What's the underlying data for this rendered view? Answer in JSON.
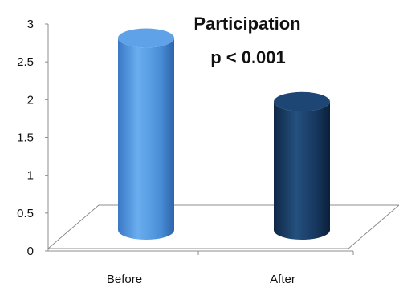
{
  "chart_data": {
    "type": "bar",
    "categories": [
      "Before",
      "After"
    ],
    "values": [
      2.92,
      2.08
    ],
    "ylim": [
      0,
      3
    ],
    "yticks": [
      "0",
      "0.5",
      "1",
      "1.5",
      "2",
      "2.5",
      "3"
    ],
    "grid": false,
    "annotations": [
      "Participation",
      "p < 0.001"
    ],
    "colors": [
      "#4a8ed8",
      "#17375e"
    ]
  }
}
